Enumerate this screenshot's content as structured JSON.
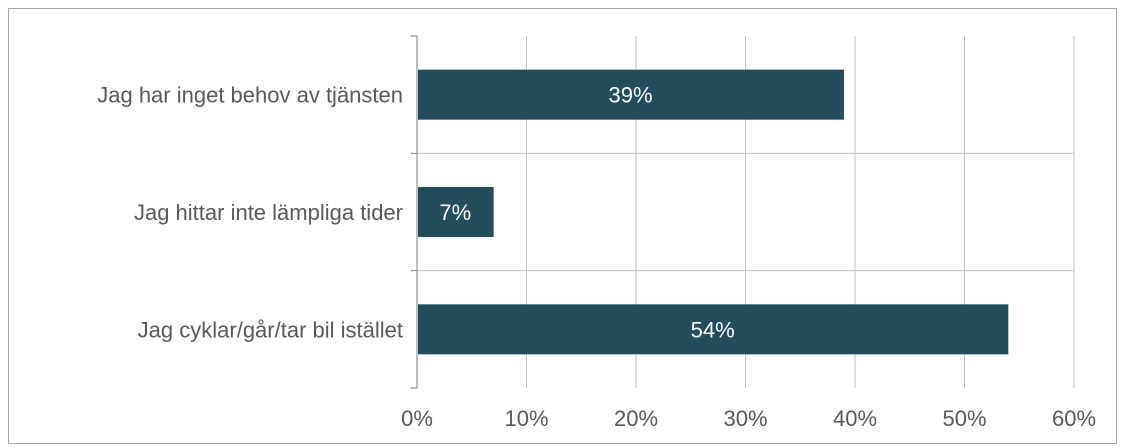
{
  "chart_data": {
    "type": "bar",
    "orientation": "horizontal",
    "title": "",
    "xlabel": "",
    "ylabel": "",
    "categories": [
      "Jag har inget behov av tjänsten",
      "Jag hittar inte lämpliga tider",
      "Jag cyklar/går/tar bil istället"
    ],
    "values": [
      39,
      7,
      54
    ],
    "data_labels": [
      "39%",
      "7%",
      "54%"
    ],
    "xlim": [
      0,
      60
    ],
    "x_ticks": [
      0,
      10,
      20,
      30,
      40,
      50,
      60
    ],
    "x_tick_labels": [
      "0%",
      "10%",
      "20%",
      "30%",
      "40%",
      "50%",
      "60%"
    ],
    "grid": true,
    "legend": false,
    "colors": {
      "bar": "#234d5c",
      "label": "#ffffff",
      "grid": "#bfbfbf",
      "text": "#595959"
    }
  }
}
